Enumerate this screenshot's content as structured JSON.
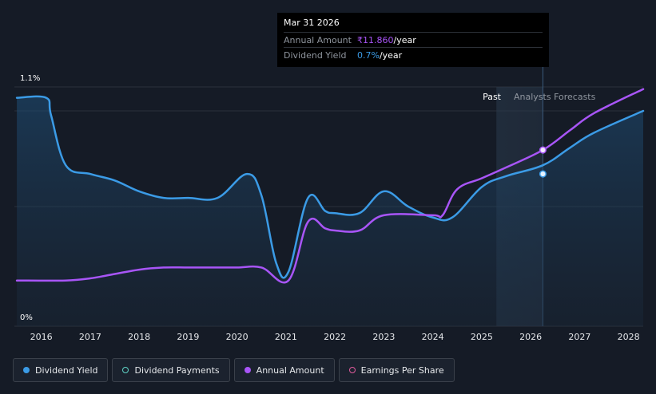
{
  "tooltip": {
    "date": "Mar 31 2026",
    "rows": [
      {
        "key": "Annual Amount",
        "value": "₹11.860",
        "suffix": "/year"
      },
      {
        "key": "Dividend Yield",
        "value": "0.7%",
        "suffix": "/year"
      }
    ]
  },
  "regions": {
    "past": "Past",
    "forecast": "Analysts Forecasts"
  },
  "legend": [
    {
      "label": "Dividend Yield"
    },
    {
      "label": "Dividend Payments"
    },
    {
      "label": "Annual Amount"
    },
    {
      "label": "Earnings Per Share"
    }
  ],
  "colors": {
    "dividend_yield": "#3b9be6",
    "annual_amount": "#a855f7",
    "dividend_payments": "#5fd3c6",
    "earnings_per_share": "#e05a9c",
    "background": "#151b26"
  },
  "chart_data": {
    "type": "line",
    "y_labels": [
      "1.1%",
      "0%"
    ],
    "ylim": [
      0,
      1.1
    ],
    "xlim": [
      2015.45,
      2028.3
    ],
    "x_ticks": [
      "2016",
      "2017",
      "2018",
      "2019",
      "2020",
      "2021",
      "2022",
      "2023",
      "2024",
      "2025",
      "2026",
      "2027",
      "2028"
    ],
    "tick_values": [
      2016,
      2017,
      2018,
      2019,
      2020,
      2021,
      2022,
      2023,
      2024,
      2025,
      2026,
      2027,
      2028
    ],
    "past_until": 2025.3,
    "highlight_x": 2026.25,
    "series": [
      {
        "name": "Dividend Yield",
        "key": "dividend_yield",
        "points": [
          [
            2015.5,
            1.05
          ],
          [
            2016.1,
            1.05
          ],
          [
            2016.2,
            0.97
          ],
          [
            2016.5,
            0.74
          ],
          [
            2017,
            0.7
          ],
          [
            2017.5,
            0.67
          ],
          [
            2018,
            0.62
          ],
          [
            2018.5,
            0.59
          ],
          [
            2019,
            0.59
          ],
          [
            2019.6,
            0.59
          ],
          [
            2020.2,
            0.7
          ],
          [
            2020.5,
            0.6
          ],
          [
            2020.8,
            0.29
          ],
          [
            2021.05,
            0.25
          ],
          [
            2021.45,
            0.59
          ],
          [
            2021.8,
            0.53
          ],
          [
            2022,
            0.52
          ],
          [
            2022.5,
            0.52
          ],
          [
            2023,
            0.62
          ],
          [
            2023.5,
            0.55
          ],
          [
            2024,
            0.5
          ],
          [
            2024.4,
            0.5
          ],
          [
            2025,
            0.64
          ],
          [
            2025.5,
            0.69
          ],
          [
            2026.25,
            0.74
          ],
          [
            2026.8,
            0.82
          ],
          [
            2027.3,
            0.89
          ],
          [
            2028.3,
            0.99
          ]
        ]
      },
      {
        "name": "Annual Amount",
        "key": "annual_amount",
        "points": [
          [
            2015.5,
            0.21
          ],
          [
            2016.5,
            0.21
          ],
          [
            2017,
            0.22
          ],
          [
            2017.5,
            0.24
          ],
          [
            2018,
            0.26
          ],
          [
            2018.5,
            0.27
          ],
          [
            2019,
            0.27
          ],
          [
            2019.5,
            0.27
          ],
          [
            2020,
            0.27
          ],
          [
            2020.5,
            0.27
          ],
          [
            2021.05,
            0.21
          ],
          [
            2021.45,
            0.48
          ],
          [
            2021.8,
            0.45
          ],
          [
            2022,
            0.44
          ],
          [
            2022.5,
            0.44
          ],
          [
            2023,
            0.51
          ],
          [
            2024,
            0.51
          ],
          [
            2024.2,
            0.51
          ],
          [
            2024.5,
            0.63
          ],
          [
            2025,
            0.68
          ],
          [
            2025.5,
            0.73
          ],
          [
            2026.25,
            0.81
          ],
          [
            2026.8,
            0.9
          ],
          [
            2027.3,
            0.98
          ],
          [
            2028.3,
            1.09
          ]
        ]
      }
    ],
    "highlight_values": {
      "dividend_yield": 0.7,
      "annual_amount": 0.81
    }
  }
}
